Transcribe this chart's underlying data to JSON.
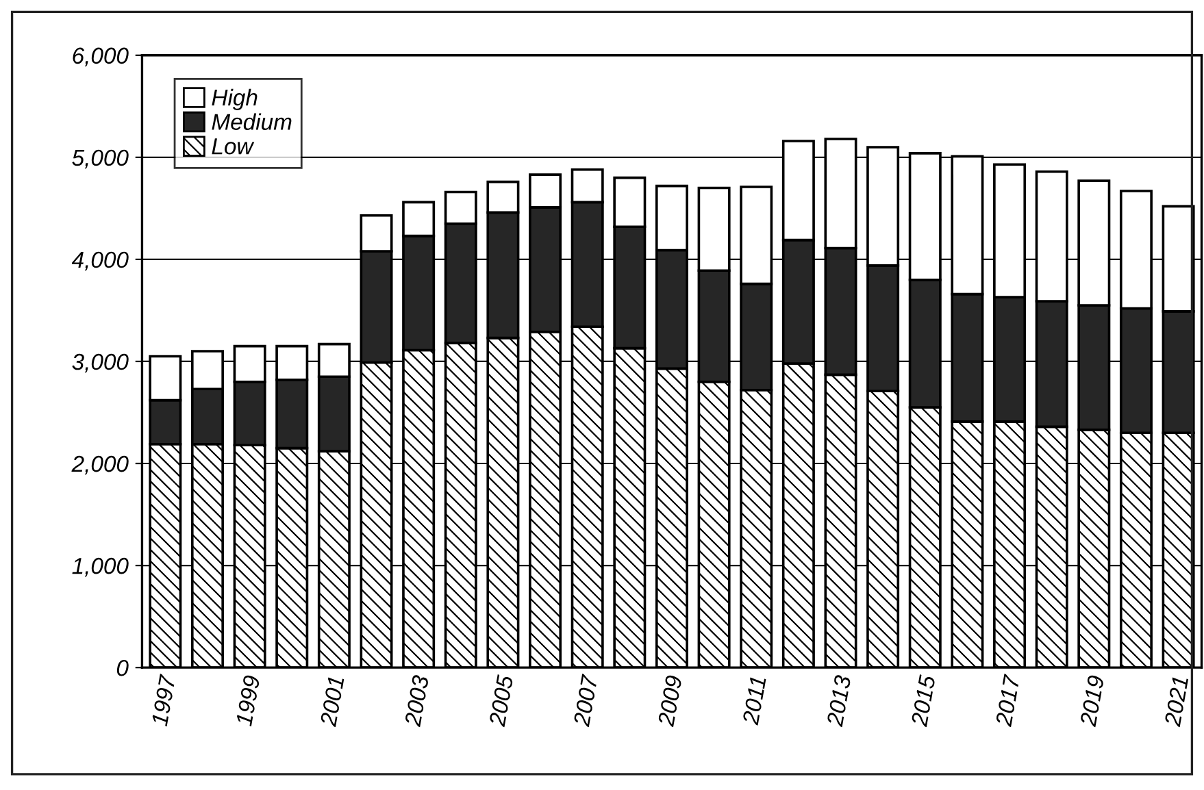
{
  "chart_data": {
    "type": "bar",
    "stacked": true,
    "categories": [
      "1997",
      null,
      "1999",
      null,
      "2001",
      null,
      "2003",
      null,
      "2005",
      null,
      "2007",
      null,
      "2009",
      null,
      "2011",
      null,
      "2013",
      null,
      "2015",
      null,
      "2017",
      null,
      "2019",
      null,
      "2021"
    ],
    "series": [
      {
        "name": "Low",
        "color": "#000000",
        "values": [
          2190,
          2190,
          2180,
          2150,
          2120,
          2990,
          3110,
          3180,
          3230,
          3290,
          3340,
          3130,
          2930,
          2800,
          2720,
          2980,
          2870,
          2710,
          2550,
          2410,
          2410,
          2360,
          2330,
          2300,
          2300
        ]
      },
      {
        "name": "Medium",
        "color": "#262626",
        "values": [
          430,
          540,
          620,
          670,
          730,
          1090,
          1120,
          1170,
          1230,
          1220,
          1220,
          1190,
          1160,
          1090,
          1040,
          1210,
          1240,
          1230,
          1250,
          1250,
          1220,
          1230,
          1220,
          1220,
          1190
        ]
      },
      {
        "name": "High",
        "color": "#ffffff",
        "values": [
          430,
          370,
          350,
          330,
          320,
          350,
          330,
          310,
          300,
          320,
          320,
          480,
          630,
          810,
          950,
          970,
          1070,
          1160,
          1240,
          1350,
          1300,
          1270,
          1220,
          1150,
          1030
        ]
      }
    ],
    "ylim": [
      0,
      6000
    ],
    "yticks": [
      0,
      {
        "value": 1000,
        "label": "1,000"
      },
      {
        "value": 2000,
        "label": "2,000"
      },
      {
        "value": 3000,
        "label": "3,000"
      },
      {
        "value": 4000,
        "label": "4,000"
      },
      {
        "value": 5000,
        "label": "5,000"
      },
      {
        "value": 6000,
        "label": "6,000"
      }
    ],
    "grid": "y",
    "legend": "top left"
  }
}
